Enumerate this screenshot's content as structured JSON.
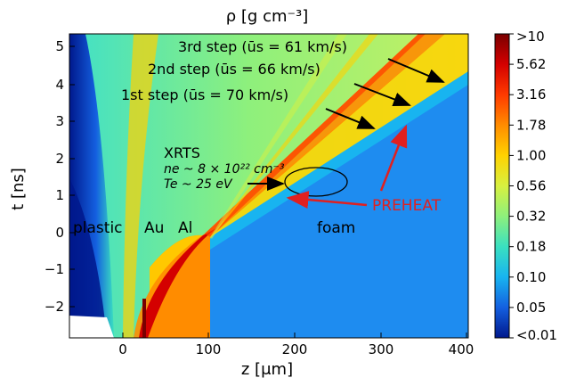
{
  "chart_data": {
    "type": "heatmap",
    "title": "ρ [g cm⁻³]",
    "xlabel": "z [μm]",
    "ylabel": "t [ns]",
    "xlim": [
      -60,
      400
    ],
    "ylim": [
      -3,
      5.4
    ],
    "xticks": [
      "0",
      "100",
      "200",
      "300",
      "400"
    ],
    "yticks": [
      "−2",
      "−1",
      "0",
      "1",
      "2",
      "3",
      "4",
      "5"
    ],
    "colorbar": {
      "scale": "log",
      "tick_labels": [
        ">10",
        "5.62",
        "3.16",
        "1.78",
        "1.00",
        "0.56",
        "0.32",
        "0.18",
        "0.10",
        "0.05",
        "<0.01"
      ],
      "colors": [
        "#7a0000",
        "#d40000",
        "#ff3a00",
        "#ff8c00",
        "#ffd200",
        "#d8f040",
        "#8ef07c",
        "#3ae0c0",
        "#18b4f0",
        "#1460e0",
        "#00188c"
      ]
    },
    "region_labels": [
      "plastic",
      "Au",
      "Al",
      "foam"
    ],
    "annotations": {
      "step3": "3rd step (ūs = 61 km/s)",
      "step2": "2nd step (ūs = 66 km/s)",
      "step1": "1st step (ūs = 70 km/s)",
      "xrts": "XRTS",
      "ne": "ne ~ 8 × 10²² cm⁻³",
      "te": "Te ~ 25 eV",
      "preheat": "PREHEAT"
    },
    "colors": {
      "preheat": "#e02020",
      "foam": "#1e8cf0",
      "background": "#8ef07c"
    }
  }
}
